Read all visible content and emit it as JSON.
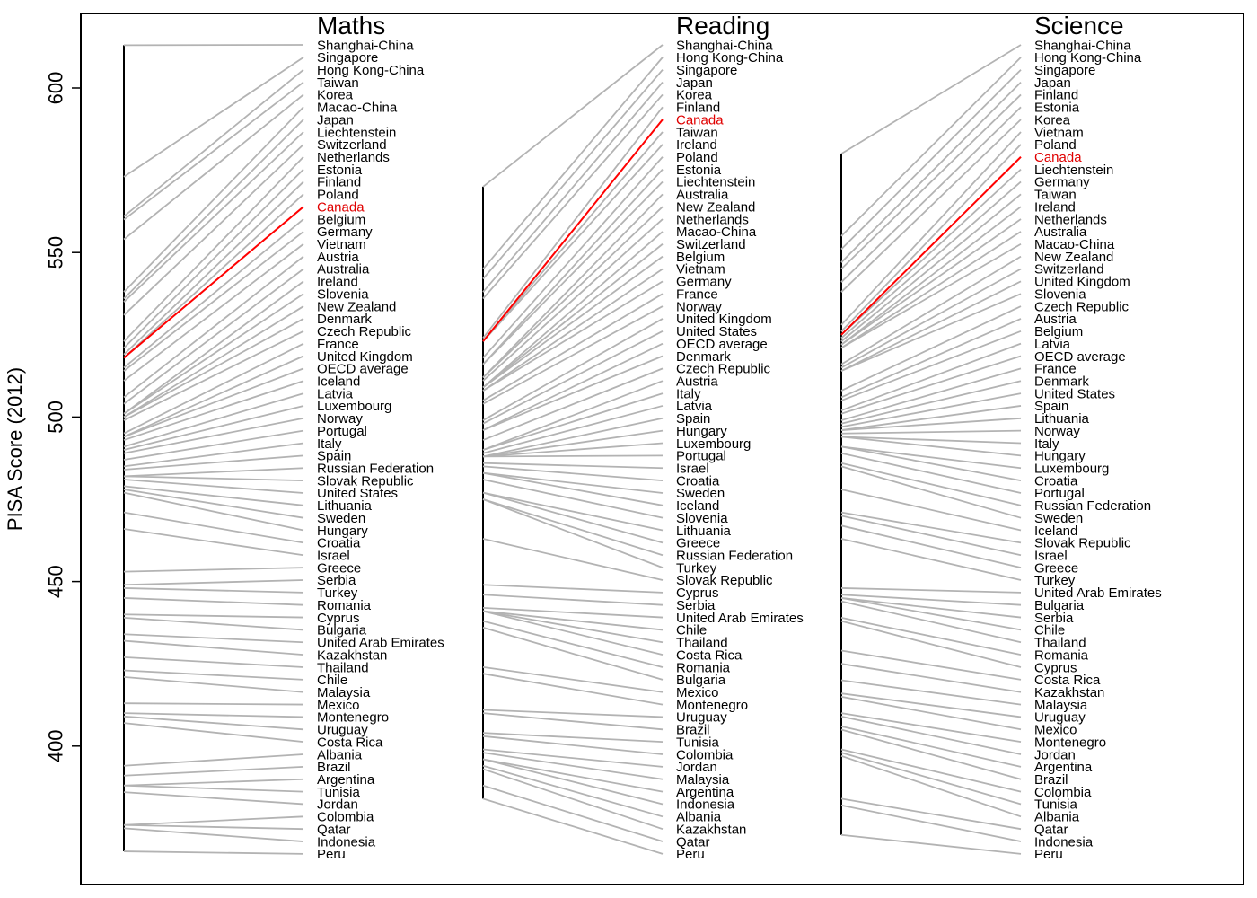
{
  "chart_data": {
    "type": "line",
    "ylabel": "PISA Score (2012)",
    "yticks": [
      400,
      450,
      500,
      550,
      600
    ],
    "highlight": "Canada",
    "highlight_color": "#ff0000",
    "line_color": "#b3b3b3",
    "panels": [
      {
        "title": "Maths",
        "countries": [
          "Shanghai-China",
          "Singapore",
          "Hong Kong-China",
          "Taiwan",
          "Korea",
          "Macao-China",
          "Japan",
          "Liechtenstein",
          "Switzerland",
          "Netherlands",
          "Estonia",
          "Finland",
          "Poland",
          "Canada",
          "Belgium",
          "Germany",
          "Vietnam",
          "Austria",
          "Australia",
          "Ireland",
          "Slovenia",
          "New Zealand",
          "Denmark",
          "Czech Republic",
          "France",
          "United Kingdom",
          "OECD average",
          "Iceland",
          "Latvia",
          "Luxembourg",
          "Norway",
          "Portugal",
          "Italy",
          "Spain",
          "Russian Federation",
          "Slovak Republic",
          "United States",
          "Lithuania",
          "Sweden",
          "Hungary",
          "Croatia",
          "Israel",
          "Greece",
          "Serbia",
          "Turkey",
          "Romania",
          "Cyprus",
          "Bulgaria",
          "United Arab Emirates",
          "Kazakhstan",
          "Thailand",
          "Chile",
          "Malaysia",
          "Mexico",
          "Montenegro",
          "Uruguay",
          "Costa Rica",
          "Albania",
          "Brazil",
          "Argentina",
          "Tunisia",
          "Jordan",
          "Colombia",
          "Qatar",
          "Indonesia",
          "Peru"
        ],
        "scores": [
          613,
          573,
          561,
          560,
          554,
          538,
          536,
          535,
          531,
          523,
          521,
          519,
          518,
          518,
          515,
          514,
          511,
          506,
          504,
          501,
          501,
          500,
          500,
          499,
          495,
          494,
          494,
          493,
          491,
          490,
          489,
          487,
          485,
          484,
          482,
          482,
          481,
          479,
          478,
          477,
          471,
          466,
          453,
          449,
          448,
          445,
          440,
          439,
          434,
          432,
          427,
          423,
          421,
          413,
          410,
          409,
          407,
          394,
          391,
          388,
          388,
          386,
          376,
          376,
          375,
          368
        ]
      },
      {
        "title": "Reading",
        "countries": [
          "Shanghai-China",
          "Hong Kong-China",
          "Singapore",
          "Japan",
          "Korea",
          "Finland",
          "Canada",
          "Taiwan",
          "Ireland",
          "Poland",
          "Estonia",
          "Liechtenstein",
          "Australia",
          "New Zealand",
          "Netherlands",
          "Macao-China",
          "Switzerland",
          "Belgium",
          "Vietnam",
          "Germany",
          "France",
          "Norway",
          "United Kingdom",
          "United States",
          "OECD average",
          "Denmark",
          "Czech Republic",
          "Austria",
          "Italy",
          "Latvia",
          "Spain",
          "Hungary",
          "Luxembourg",
          "Portugal",
          "Israel",
          "Croatia",
          "Sweden",
          "Iceland",
          "Slovenia",
          "Lithuania",
          "Greece",
          "Russian Federation",
          "Turkey",
          "Slovak Republic",
          "Cyprus",
          "Serbia",
          "United Arab Emirates",
          "Chile",
          "Thailand",
          "Costa Rica",
          "Romania",
          "Bulgaria",
          "Mexico",
          "Montenegro",
          "Uruguay",
          "Brazil",
          "Tunisia",
          "Colombia",
          "Jordan",
          "Malaysia",
          "Argentina",
          "Indonesia",
          "Albania",
          "Kazakhstan",
          "Qatar",
          "Peru"
        ],
        "scores": [
          570,
          545,
          542,
          538,
          536,
          524,
          523,
          523,
          523,
          518,
          516,
          516,
          512,
          512,
          511,
          509,
          509,
          509,
          508,
          508,
          505,
          504,
          499,
          498,
          496,
          496,
          493,
          490,
          490,
          489,
          488,
          488,
          488,
          488,
          486,
          485,
          483,
          483,
          481,
          477,
          477,
          475,
          475,
          463,
          449,
          446,
          442,
          441,
          441,
          441,
          438,
          436,
          424,
          422,
          411,
          410,
          404,
          403,
          399,
          398,
          396,
          396,
          394,
          393,
          388,
          384
        ]
      },
      {
        "title": "Science",
        "countries": [
          "Shanghai-China",
          "Hong Kong-China",
          "Singapore",
          "Japan",
          "Finland",
          "Estonia",
          "Korea",
          "Vietnam",
          "Poland",
          "Canada",
          "Liechtenstein",
          "Germany",
          "Taiwan",
          "Ireland",
          "Netherlands",
          "Australia",
          "Macao-China",
          "New Zealand",
          "Switzerland",
          "United Kingdom",
          "Slovenia",
          "Czech Republic",
          "Austria",
          "Belgium",
          "Latvia",
          "OECD average",
          "France",
          "Denmark",
          "United States",
          "Spain",
          "Lithuania",
          "Norway",
          "Italy",
          "Hungary",
          "Luxembourg",
          "Croatia",
          "Portugal",
          "Russian Federation",
          "Sweden",
          "Iceland",
          "Slovak Republic",
          "Israel",
          "Greece",
          "Turkey",
          "United Arab Emirates",
          "Bulgaria",
          "Serbia",
          "Chile",
          "Thailand",
          "Romania",
          "Cyprus",
          "Costa Rica",
          "Kazakhstan",
          "Malaysia",
          "Uruguay",
          "Mexico",
          "Montenegro",
          "Jordan",
          "Argentina",
          "Brazil",
          "Colombia",
          "Tunisia",
          "Albania",
          "Qatar",
          "Indonesia",
          "Peru"
        ],
        "scores": [
          580,
          555,
          551,
          547,
          545,
          541,
          538,
          528,
          526,
          525,
          525,
          524,
          523,
          522,
          522,
          521,
          521,
          516,
          515,
          514,
          514,
          508,
          506,
          505,
          502,
          501,
          499,
          498,
          497,
          496,
          496,
          495,
          494,
          494,
          491,
          491,
          489,
          486,
          485,
          478,
          471,
          470,
          467,
          463,
          448,
          446,
          445,
          445,
          444,
          439,
          438,
          429,
          425,
          420,
          416,
          415,
          410,
          409,
          406,
          405,
          399,
          398,
          397,
          384,
          382,
          373
        ]
      }
    ]
  }
}
